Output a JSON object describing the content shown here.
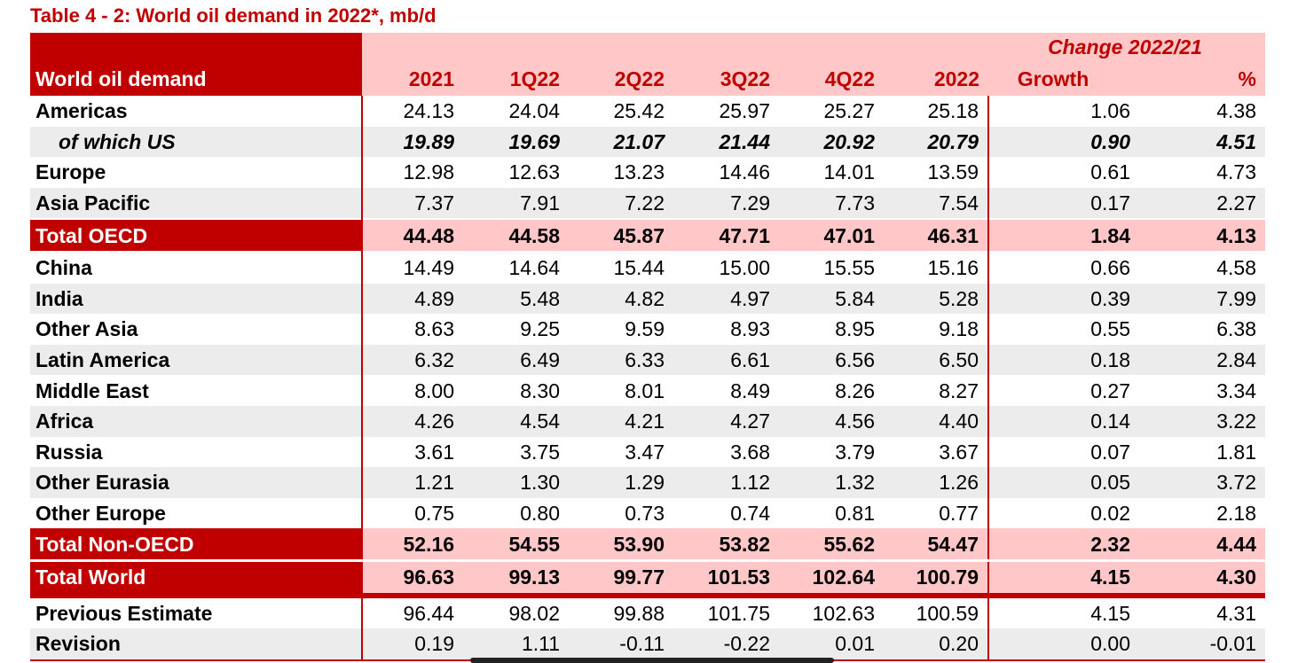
{
  "title": "Table 4 - 2: World oil demand in 2022*, mb/d",
  "header": {
    "row_label": "World oil demand",
    "change_group": "Change 2022/21",
    "columns": [
      "2021",
      "1Q22",
      "2Q22",
      "3Q22",
      "4Q22",
      "2022",
      "Growth",
      "%"
    ]
  },
  "rows": [
    {
      "label": "Americas",
      "values": [
        "24.13",
        "24.04",
        "25.42",
        "25.97",
        "25.27",
        "25.18",
        "1.06",
        "4.38"
      ]
    },
    {
      "label": "of which US",
      "values": [
        "19.89",
        "19.69",
        "21.07",
        "21.44",
        "20.92",
        "20.79",
        "0.90",
        "4.51"
      ]
    },
    {
      "label": "Europe",
      "values": [
        "12.98",
        "12.63",
        "13.23",
        "14.46",
        "14.01",
        "13.59",
        "0.61",
        "4.73"
      ]
    },
    {
      "label": "Asia Pacific",
      "values": [
        "7.37",
        "7.91",
        "7.22",
        "7.29",
        "7.73",
        "7.54",
        "0.17",
        "2.27"
      ]
    },
    {
      "label": "Total OECD",
      "values": [
        "44.48",
        "44.58",
        "45.87",
        "47.71",
        "47.01",
        "46.31",
        "1.84",
        "4.13"
      ]
    },
    {
      "label": "China",
      "values": [
        "14.49",
        "14.64",
        "15.44",
        "15.00",
        "15.55",
        "15.16",
        "0.66",
        "4.58"
      ]
    },
    {
      "label": "India",
      "values": [
        "4.89",
        "5.48",
        "4.82",
        "4.97",
        "5.84",
        "5.28",
        "0.39",
        "7.99"
      ]
    },
    {
      "label": "Other Asia",
      "values": [
        "8.63",
        "9.25",
        "9.59",
        "8.93",
        "8.95",
        "9.18",
        "0.55",
        "6.38"
      ]
    },
    {
      "label": "Latin America",
      "values": [
        "6.32",
        "6.49",
        "6.33",
        "6.61",
        "6.56",
        "6.50",
        "0.18",
        "2.84"
      ]
    },
    {
      "label": "Middle East",
      "values": [
        "8.00",
        "8.30",
        "8.01",
        "8.49",
        "8.26",
        "8.27",
        "0.27",
        "3.34"
      ]
    },
    {
      "label": "Africa",
      "values": [
        "4.26",
        "4.54",
        "4.21",
        "4.27",
        "4.56",
        "4.40",
        "0.14",
        "3.22"
      ]
    },
    {
      "label": "Russia",
      "values": [
        "3.61",
        "3.75",
        "3.47",
        "3.68",
        "3.79",
        "3.67",
        "0.07",
        "1.81"
      ]
    },
    {
      "label": "Other Eurasia",
      "values": [
        "1.21",
        "1.30",
        "1.29",
        "1.12",
        "1.32",
        "1.26",
        "0.05",
        "3.72"
      ]
    },
    {
      "label": "Other Europe",
      "values": [
        "0.75",
        "0.80",
        "0.73",
        "0.74",
        "0.81",
        "0.77",
        "0.02",
        "2.18"
      ]
    },
    {
      "label": "Total Non-OECD",
      "values": [
        "52.16",
        "54.55",
        "53.90",
        "53.82",
        "55.62",
        "54.47",
        "2.32",
        "4.44"
      ]
    },
    {
      "label": "Total World",
      "values": [
        "96.63",
        "99.13",
        "99.77",
        "101.53",
        "102.64",
        "100.79",
        "4.15",
        "4.30"
      ]
    },
    {
      "label": "Previous Estimate",
      "values": [
        "96.44",
        "98.02",
        "99.88",
        "101.75",
        "102.63",
        "100.59",
        "4.15",
        "4.31"
      ]
    },
    {
      "label": "Revision",
      "values": [
        "0.19",
        "1.11",
        "-0.11",
        "-0.22",
        "0.01",
        "0.20",
        "0.00",
        "-0.01"
      ]
    }
  ],
  "colors": {
    "accent": "#c00000",
    "header_fill": "#ffc7c7",
    "alt_row": "#ececec"
  }
}
